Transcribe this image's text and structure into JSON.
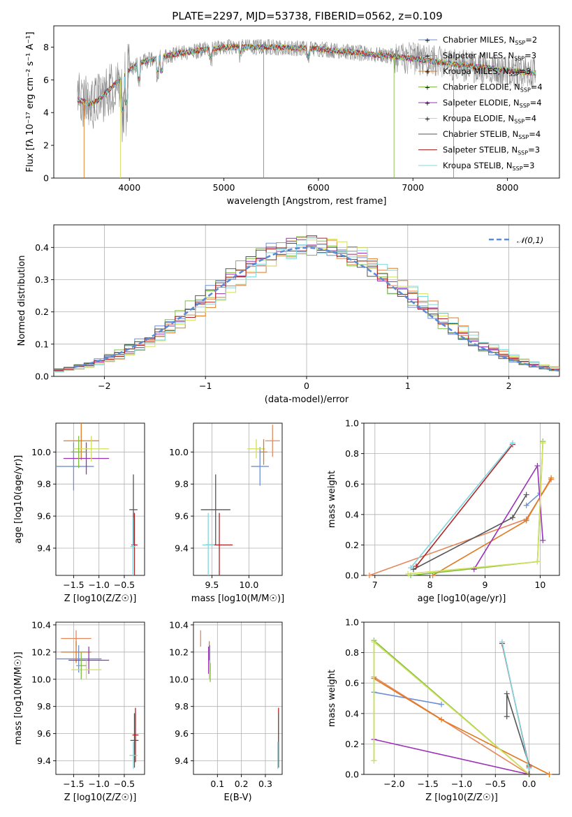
{
  "figure": {
    "title": "PLATE=2297, MJD=53738, FIBERID=0562, z=0.109"
  },
  "fits": [
    {
      "name": "Chabrier MILES",
      "nssp": "2",
      "color": "#6d8fd8"
    },
    {
      "name": "Salpeter MILES",
      "nssp": "3",
      "color": "#e5875a"
    },
    {
      "name": "Kroupa MILES",
      "nssp": "3",
      "color": "#e07a22"
    },
    {
      "name": "Chabrier ELODIE",
      "nssp": "4",
      "color": "#7fbf3f"
    },
    {
      "name": "Salpeter ELODIE",
      "nssp": "4",
      "color": "#9b30b8"
    },
    {
      "name": "Kroupa ELODIE",
      "nssp": "4",
      "color": "#d2e05a"
    },
    {
      "name": "Chabrier STELIB",
      "nssp": "4",
      "color": "#555555"
    },
    {
      "name": "Salpeter STELIB",
      "nssp": "3",
      "color": "#b22222"
    },
    {
      "name": "Kroupa STELIB",
      "nssp": "3",
      "color": "#7ed6e0"
    }
  ],
  "chart_data": [
    {
      "id": "spectrum",
      "type": "line",
      "title": "PLATE=2297, MJD=53738, FIBERID=0562, z=0.109",
      "xlabel": "wavelength [Angstrom, rest frame]",
      "ylabel": "Flux [fλ 10⁻¹⁷ erg cm⁻² s⁻¹ A⁻¹]",
      "xlim": [
        3200,
        8550
      ],
      "ylim": [
        0,
        9.3
      ],
      "xticks": [
        "4000",
        "5000",
        "6000",
        "7000",
        "8000"
      ],
      "yticks": [
        "0",
        "2",
        "4",
        "6",
        "8"
      ],
      "legend": "right",
      "legend_entries": [
        "Chabrier MILES, N_SSP=2",
        "Salpeter MILES, N_SSP=3",
        "Kroupa MILES, N_SSP=3",
        "Chabrier ELODIE, N_SSP=4",
        "Salpeter ELODIE, N_SSP=4",
        "Kroupa ELODIE, N_SSP=4",
        "Chabrier STELIB, N_SSP=4",
        "Salpeter STELIB, N_SSP=3",
        "Kroupa STELIB, N_SSP=3"
      ],
      "continuum": {
        "x": [
          3450,
          3600,
          3700,
          3800,
          3900,
          4000,
          4100,
          4200,
          4500,
          5000,
          5500,
          6000,
          6500,
          7000,
          7500,
          8000,
          8300
        ],
        "y": [
          4.8,
          4.5,
          4.9,
          5.5,
          6.0,
          6.6,
          7.0,
          7.2,
          7.6,
          8.0,
          8.0,
          7.9,
          7.6,
          7.3,
          6.9,
          6.6,
          6.4
        ]
      }
    },
    {
      "id": "residuals",
      "type": "line",
      "xlabel": "(data-model)/error",
      "ylabel": "Normed distribution",
      "xlim": [
        -2.5,
        2.5
      ],
      "ylim": [
        0,
        0.47
      ],
      "xticks": [
        "-2",
        "-1",
        "0",
        "1",
        "2"
      ],
      "yticks": [
        "0.0",
        "0.1",
        "0.2",
        "0.3",
        "0.4"
      ],
      "legend": "top-right",
      "legend_entries": [
        "𝒩(0,1)"
      ],
      "series": [
        {
          "mu": 0,
          "sigma": 1
        }
      ]
    },
    {
      "id": "age-vs-Z",
      "type": "scatter",
      "xlabel": "Z [log10(Z/Z☉)]",
      "ylabel": "age  [log10(age/yr)]",
      "xlim": [
        -1.85,
        -0.1
      ],
      "ylim": [
        9.23,
        10.18
      ],
      "xticks": [
        "-1.5",
        "-1.0",
        "-0.5"
      ],
      "yticks": [
        "9.4",
        "9.6",
        "9.8",
        "10.0"
      ],
      "points": [
        {
          "fit": 0,
          "x": -1.5,
          "y": 9.91,
          "xerr": 0.4,
          "yerr": 0.15
        },
        {
          "fit": 2,
          "x": -1.35,
          "y": 10.07,
          "xerr": 0.35,
          "yerr": 0.12
        },
        {
          "fit": 4,
          "x": -1.25,
          "y": 9.96,
          "xerr": 0.45,
          "yerr": 0.1
        },
        {
          "fit": 5,
          "x": -1.15,
          "y": 10.02,
          "xerr": 0.35,
          "yerr": 0.08
        },
        {
          "fit": 3,
          "x": -1.4,
          "y": 10.0,
          "xerr": 0.15,
          "yerr": 0.1
        },
        {
          "fit": 6,
          "x": -0.32,
          "y": 9.64,
          "xerr": 0.08,
          "yerr": 0.22
        },
        {
          "fit": 7,
          "x": -0.3,
          "y": 9.42,
          "xerr": 0.06,
          "yerr": 0.2
        },
        {
          "fit": 8,
          "x": -0.33,
          "y": 9.41,
          "xerr": 0.05,
          "yerr": 0.18
        }
      ]
    },
    {
      "id": "age-vs-mass",
      "type": "scatter",
      "xlabel": "mass [log10(M/M☉)]",
      "ylabel": "",
      "xlim": [
        9.25,
        10.45
      ],
      "ylim": [
        9.23,
        10.18
      ],
      "xticks": [
        "9.5",
        "10.0"
      ],
      "yticks": [
        "9.4",
        "9.6",
        "9.8",
        "10.0"
      ],
      "points": [
        {
          "fit": 0,
          "x": 10.15,
          "y": 9.91,
          "xerr": 0.12,
          "yerr": 0.12
        },
        {
          "fit": 1,
          "x": 10.32,
          "y": 10.07,
          "xerr": 0.1,
          "yerr": 0.1
        },
        {
          "fit": 5,
          "x": 10.1,
          "y": 10.02,
          "xerr": 0.12,
          "yerr": 0.06
        },
        {
          "fit": 2,
          "x": 10.2,
          "y": 10.0,
          "xerr": 0.05,
          "yerr": 0.08
        },
        {
          "fit": 6,
          "x": 9.55,
          "y": 9.64,
          "xerr": 0.2,
          "yerr": 0.22
        },
        {
          "fit": 7,
          "x": 9.6,
          "y": 9.42,
          "xerr": 0.18,
          "yerr": 0.2
        },
        {
          "fit": 8,
          "x": 9.45,
          "y": 9.42,
          "xerr": 0.08,
          "yerr": 0.2
        }
      ]
    },
    {
      "id": "massweight-vs-age",
      "type": "line",
      "xlabel": "age  [log10(age/yr)]",
      "ylabel": "mass weight",
      "xlim": [
        6.8,
        10.35
      ],
      "ylim": [
        0,
        1.0
      ],
      "xticks": [
        "7",
        "8",
        "9",
        "10"
      ],
      "yticks": [
        "0.0",
        "0.2",
        "0.4",
        "0.6",
        "0.8",
        "1.0"
      ],
      "series": [
        {
          "fit": 0,
          "x": [
            9.75,
            10.0
          ],
          "y": [
            0.46,
            0.54
          ]
        },
        {
          "fit": 1,
          "x": [
            6.9,
            9.75,
            10.2
          ],
          "y": [
            0.0,
            0.37,
            0.63
          ]
        },
        {
          "fit": 2,
          "x": [
            8.05,
            9.75,
            10.2
          ],
          "y": [
            0.0,
            0.36,
            0.64
          ]
        },
        {
          "fit": 3,
          "x": [
            7.65,
            9.95,
            10.05
          ],
          "y": [
            0.0,
            0.09,
            0.88
          ]
        },
        {
          "fit": 4,
          "x": [
            8.8,
            9.95,
            10.05
          ],
          "y": [
            0.04,
            0.72,
            0.23
          ]
        },
        {
          "fit": 5,
          "x": [
            7.6,
            9.95,
            10.05
          ],
          "y": [
            0.01,
            0.09,
            0.87
          ]
        },
        {
          "fit": 6,
          "x": [
            7.7,
            9.5,
            9.75
          ],
          "y": [
            0.04,
            0.38,
            0.53
          ]
        },
        {
          "fit": 7,
          "x": [
            7.75,
            9.5
          ],
          "y": [
            0.06,
            0.86
          ]
        },
        {
          "fit": 8,
          "x": [
            7.65,
            9.5
          ],
          "y": [
            0.05,
            0.87
          ]
        }
      ]
    },
    {
      "id": "mass-vs-Z",
      "type": "scatter",
      "xlabel": "Z [log10(Z/Z☉)]",
      "ylabel": "mass [log10(M/M☉)]",
      "xlim": [
        -1.85,
        -0.1
      ],
      "ylim": [
        9.3,
        10.42
      ],
      "xticks": [
        "-1.5",
        "-1.0",
        "-0.5"
      ],
      "yticks": [
        "9.4",
        "9.6",
        "9.8",
        "10.0",
        "10.2",
        "10.4"
      ],
      "points": [
        {
          "fit": 0,
          "x": -1.4,
          "y": 10.15,
          "xerr": 0.45,
          "yerr": 0.1
        },
        {
          "fit": 1,
          "x": -1.45,
          "y": 10.3,
          "xerr": 0.3,
          "yerr": 0.06
        },
        {
          "fit": 2,
          "x": -1.45,
          "y": 10.2,
          "xerr": 0.3,
          "yerr": 0.08
        },
        {
          "fit": 4,
          "x": -1.2,
          "y": 10.14,
          "xerr": 0.4,
          "yerr": 0.1
        },
        {
          "fit": 5,
          "x": -1.25,
          "y": 10.07,
          "xerr": 0.3,
          "yerr": 0.07
        },
        {
          "fit": 3,
          "x": -1.35,
          "y": 10.1,
          "xerr": 0.1,
          "yerr": 0.1
        },
        {
          "fit": 6,
          "x": -0.3,
          "y": 9.55,
          "xerr": 0.08,
          "yerr": 0.2
        },
        {
          "fit": 7,
          "x": -0.28,
          "y": 9.59,
          "xerr": 0.06,
          "yerr": 0.2
        },
        {
          "fit": 8,
          "x": -0.32,
          "y": 9.44,
          "xerr": 0.08,
          "yerr": 0.1
        }
      ]
    },
    {
      "id": "mass-vs-EBV",
      "type": "scatter",
      "xlabel": "E(B-V)",
      "ylabel": "",
      "xlim": [
        0,
        0.37
      ],
      "ylim": [
        9.3,
        10.42
      ],
      "xticks": [
        "0.1",
        "0.2",
        "0.3"
      ],
      "yticks": [
        "9.4",
        "9.6",
        "9.8",
        "10.0",
        "10.2",
        "10.4"
      ],
      "points": [
        {
          "fit": 1,
          "x": 0.03,
          "y": 10.3,
          "xerr": 0.0,
          "yerr": 0.06
        },
        {
          "fit": 0,
          "x": 0.068,
          "y": 10.15,
          "xerr": 0.0,
          "yerr": 0.1
        },
        {
          "fit": 2,
          "x": 0.066,
          "y": 10.2,
          "xerr": 0.0,
          "yerr": 0.08
        },
        {
          "fit": 4,
          "x": 0.063,
          "y": 10.14,
          "xerr": 0.0,
          "yerr": 0.1
        },
        {
          "fit": 3,
          "x": 0.07,
          "y": 10.05,
          "xerr": 0.0,
          "yerr": 0.07
        },
        {
          "fit": 5,
          "x": 0.066,
          "y": 10.07,
          "xerr": 0.0,
          "yerr": 0.07
        },
        {
          "fit": 7,
          "x": 0.355,
          "y": 9.59,
          "xerr": 0.0,
          "yerr": 0.2
        },
        {
          "fit": 6,
          "x": 0.355,
          "y": 9.55,
          "xerr": 0.0,
          "yerr": 0.2
        },
        {
          "fit": 8,
          "x": 0.352,
          "y": 9.44,
          "xerr": 0.0,
          "yerr": 0.1
        }
      ]
    },
    {
      "id": "massweight-vs-Z",
      "type": "line",
      "xlabel": "Z [log10(Z/Z☉)]",
      "ylabel": "mass weight",
      "xlim": [
        -2.45,
        0.45
      ],
      "ylim": [
        0,
        1.0
      ],
      "xticks": [
        "-2.0",
        "-1.5",
        "-1.0",
        "-0.5",
        "0.0"
      ],
      "yticks": [
        "0.0",
        "0.2",
        "0.4",
        "0.6",
        "0.8",
        "1.0"
      ],
      "series": [
        {
          "fit": 0,
          "x": [
            -2.3,
            -1.3
          ],
          "y": [
            0.54,
            0.46
          ]
        },
        {
          "fit": 1,
          "x": [
            -2.3,
            0.0
          ],
          "y": [
            0.64,
            0.0
          ]
        },
        {
          "fit": 2,
          "x": [
            -2.3,
            -1.3,
            0.3
          ],
          "y": [
            0.63,
            0.36,
            0.0
          ]
        },
        {
          "fit": 3,
          "x": [
            -2.3,
            -2.3,
            0.0
          ],
          "y": [
            0.09,
            0.88,
            0.0
          ]
        },
        {
          "fit": 4,
          "x": [
            -2.3,
            0.0
          ],
          "y": [
            0.23,
            0.0
          ]
        },
        {
          "fit": 5,
          "x": [
            -2.3,
            -2.3,
            0.0
          ],
          "y": [
            0.09,
            0.87,
            0.0
          ]
        },
        {
          "fit": 6,
          "x": [
            -0.33,
            -0.33,
            0.0,
            0.0
          ],
          "y": [
            0.38,
            0.53,
            0.06,
            0.0
          ]
        },
        {
          "fit": 7,
          "x": [
            -0.4,
            0.0
          ],
          "y": [
            0.86,
            0.05
          ]
        },
        {
          "fit": 8,
          "x": [
            -0.4,
            0.0
          ],
          "y": [
            0.87,
            0.04
          ]
        }
      ]
    }
  ]
}
